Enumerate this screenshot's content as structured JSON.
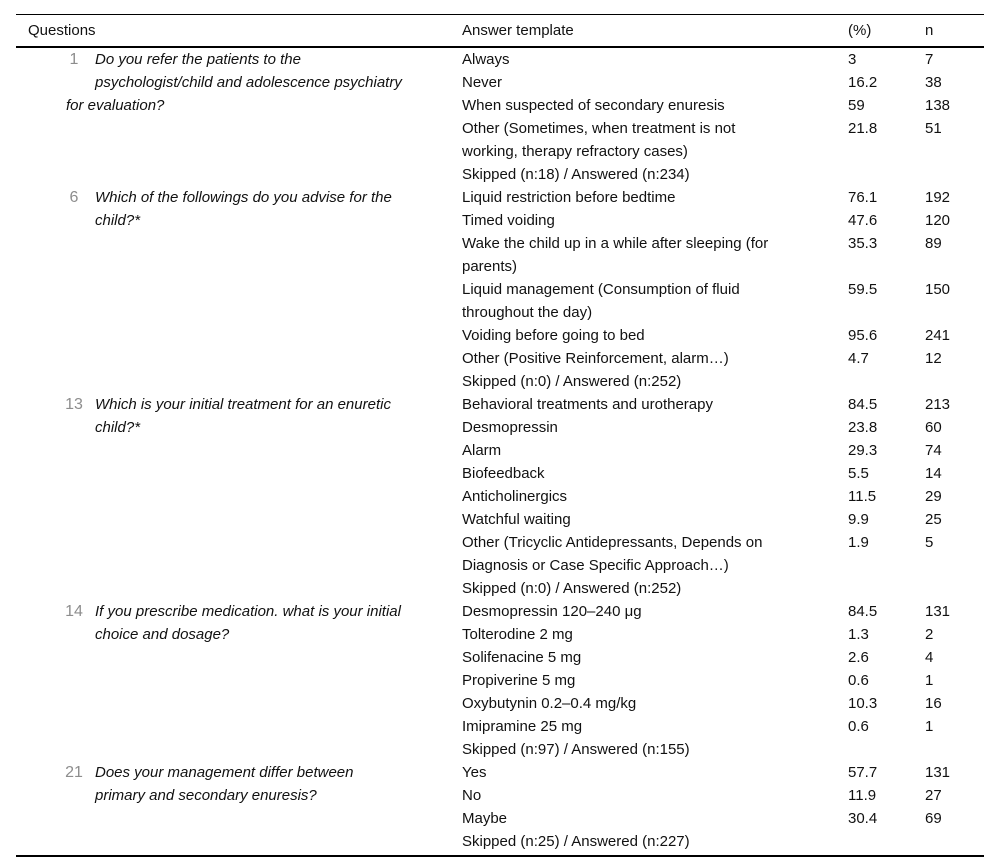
{
  "table": {
    "headers": {
      "questions": "Questions",
      "answer_template": "Answer template",
      "percent": "(%)",
      "n": "n"
    },
    "blocks": [
      {
        "number": "1",
        "text": "Do you refer the patients to the\npsychologist/child and adolescence psychiatry",
        "overhang": "for evaluation?",
        "answers": [
          {
            "text": "Always",
            "percent": "3",
            "n": "7"
          },
          {
            "text": "Never",
            "percent": "16.2",
            "n": "38"
          },
          {
            "text": "When suspected of secondary enuresis",
            "percent": "59",
            "n": "138"
          },
          {
            "text": "Other (Sometimes, when treatment is not\nworking, therapy refractory cases)",
            "percent": "21.8",
            "n": "51"
          },
          {
            "text": "Skipped (n:18) / Answered (n:234)",
            "percent": "",
            "n": ""
          }
        ]
      },
      {
        "number": "6",
        "text": "Which of the followings do you advise for the\nchild?*",
        "overhang": "",
        "answers": [
          {
            "text": "Liquid restriction before bedtime",
            "percent": "76.1",
            "n": "192"
          },
          {
            "text": "Timed voiding",
            "percent": "47.6",
            "n": "120"
          },
          {
            "text": "Wake the child up in a while after sleeping (for\nparents)",
            "percent": "35.3",
            "n": "89"
          },
          {
            "text": "Liquid management (Consumption of fluid\nthroughout the day)",
            "percent": "59.5",
            "n": "150"
          },
          {
            "text": "Voiding before going to bed",
            "percent": "95.6",
            "n": "241"
          },
          {
            "text": "Other (Positive Reinforcement, alarm…)",
            "percent": "4.7",
            "n": "12"
          },
          {
            "text": "Skipped (n:0) / Answered (n:252)",
            "percent": "",
            "n": ""
          }
        ]
      },
      {
        "number": "13",
        "text": "Which is your initial treatment for an enuretic\nchild?*",
        "overhang": "",
        "answers": [
          {
            "text": "Behavioral treatments and urotherapy",
            "percent": "84.5",
            "n": "213"
          },
          {
            "text": "Desmopressin",
            "percent": "23.8",
            "n": "60"
          },
          {
            "text": "Alarm",
            "percent": "29.3",
            "n": "74"
          },
          {
            "text": "Biofeedback",
            "percent": "5.5",
            "n": "14"
          },
          {
            "text": "Anticholinergics",
            "percent": "11.5",
            "n": "29"
          },
          {
            "text": "Watchful waiting",
            "percent": "9.9",
            "n": "25"
          },
          {
            "text": "Other (Tricyclic Antidepressants, Depends on\nDiagnosis or Case Specific Approach…)",
            "percent": "1.9",
            "n": "5"
          },
          {
            "text": "Skipped (n:0) / Answered (n:252)",
            "percent": "",
            "n": ""
          }
        ]
      },
      {
        "number": "14",
        "text": "If you prescribe medication. what is your initial\nchoice and dosage?",
        "overhang": "",
        "answers": [
          {
            "text": "Desmopressin 120–240 μg",
            "percent": "84.5",
            "n": "131"
          },
          {
            "text": "Tolterodine 2 mg",
            "percent": "1.3",
            "n": "2"
          },
          {
            "text": "Solifenacine 5 mg",
            "percent": "2.6",
            "n": "4"
          },
          {
            "text": "Propiverine 5 mg",
            "percent": "0.6",
            "n": "1"
          },
          {
            "text": "Oxybutynin 0.2–0.4 mg/kg",
            "percent": "10.3",
            "n": "16"
          },
          {
            "text": "Imipramine 25 mg",
            "percent": "0.6",
            "n": "1"
          },
          {
            "text": "Skipped (n:97) / Answered (n:155)",
            "percent": "",
            "n": ""
          }
        ]
      },
      {
        "number": "21",
        "text": "Does your management differ between\nprimary and secondary enuresis?",
        "overhang": "",
        "answers": [
          {
            "text": "Yes",
            "percent": "57.7",
            "n": "131"
          },
          {
            "text": "No",
            "percent": "11.9",
            "n": "27"
          },
          {
            "text": "Maybe",
            "percent": "30.4",
            "n": "69"
          },
          {
            "text": "Skipped (n:25) / Answered (n:227)",
            "percent": "",
            "n": ""
          }
        ]
      }
    ]
  }
}
